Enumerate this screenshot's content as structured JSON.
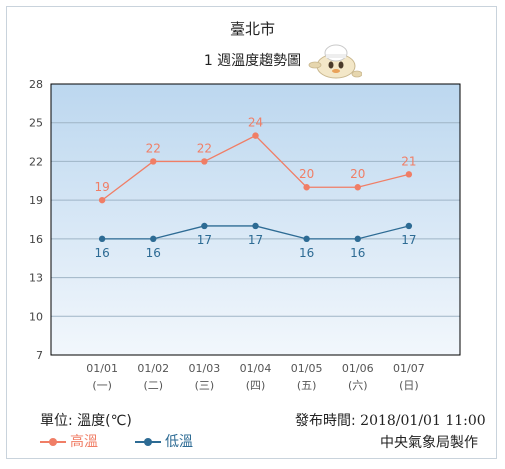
{
  "header": {
    "city": "臺北市",
    "subtitle": "1 週溫度趨勢圖"
  },
  "footer": {
    "unit_label": "單位: 溫度(℃)",
    "issued_label": "發布時間:",
    "issued_time": "2018/01/01 11:00",
    "agency": "中央氣象局製作"
  },
  "colors": {
    "high": "#f07e66",
    "low": "#2d6b94",
    "plot_top": "#bcd7ef",
    "plot_bottom": "#f2f7fc",
    "grid": "#9fb4c6"
  },
  "chart_data": {
    "type": "line",
    "categories": [
      "01/01",
      "01/02",
      "01/03",
      "01/04",
      "01/05",
      "01/06",
      "01/07"
    ],
    "weekdays": [
      "(一)",
      "(二)",
      "(三)",
      "(四)",
      "(五)",
      "(六)",
      "(日)"
    ],
    "series": [
      {
        "name": "高溫",
        "values": [
          19,
          22,
          22,
          24,
          20,
          20,
          21
        ]
      },
      {
        "name": "低溫",
        "values": [
          16,
          16,
          17,
          17,
          16,
          16,
          17
        ]
      }
    ],
    "ylim": [
      7,
      28
    ],
    "yticks": [
      7,
      10,
      13,
      16,
      19,
      22,
      25,
      28
    ],
    "grid": true,
    "legend": "bottom-left"
  }
}
